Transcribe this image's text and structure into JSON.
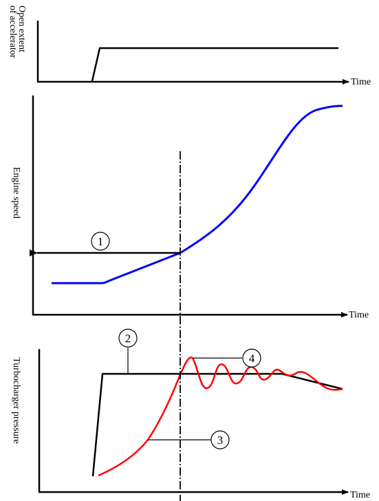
{
  "colors": {
    "axis": "#000000",
    "accelerator_line": "#000000",
    "engine_speed_curve": "#0000ff",
    "target_pressure_line": "#000000",
    "actual_pressure_curve": "#ff0000",
    "background": "#ffffff"
  },
  "panels": {
    "accelerator": {
      "y_label_line1": "Open extent",
      "y_label_line2": "of accelerator",
      "x_label": "Time"
    },
    "engine_speed": {
      "y_label": "Engine speed",
      "x_label": "Time"
    },
    "turbo_pressure": {
      "y_label": "Turbocharger pressure",
      "x_label": "Time"
    }
  },
  "markers": {
    "m1": "1",
    "m2": "2",
    "m3": "3",
    "m4": "4"
  },
  "divider_style": "dash-dot"
}
